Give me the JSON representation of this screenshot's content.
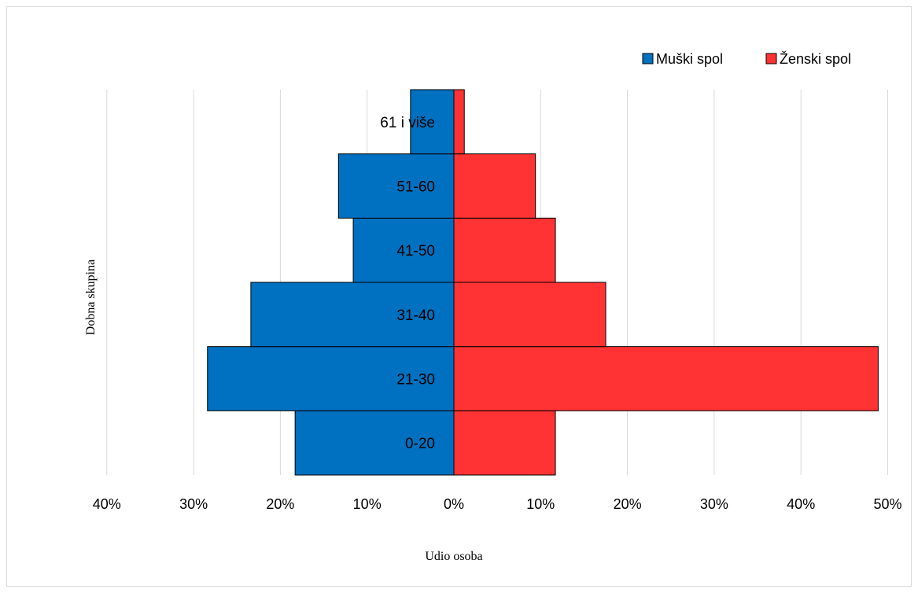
{
  "chart_data": {
    "type": "bar",
    "orientation": "horizontal",
    "layout": "population-pyramid",
    "xlabel": "Udio osoba",
    "ylabel": "Dobna skupina",
    "categories": [
      "0-20",
      "21-30",
      "31-40",
      "41-50",
      "51-60",
      "61 i više"
    ],
    "series": [
      {
        "name": "Muški spol",
        "color": "#0070c0",
        "side": "left",
        "values": [
          18.3,
          28.4,
          23.4,
          11.6,
          13.3,
          5.0
        ]
      },
      {
        "name": "Ženski spol",
        "color": "#ff3333",
        "side": "right",
        "values": [
          11.7,
          48.9,
          17.5,
          11.7,
          9.4,
          1.2
        ]
      }
    ],
    "xlim": [
      -40,
      50
    ],
    "xticks": [
      -40,
      -30,
      -20,
      -10,
      0,
      10,
      20,
      30,
      40,
      50
    ],
    "xtick_labels": [
      "40%",
      "30%",
      "20%",
      "10%",
      "0%",
      "10%",
      "20%",
      "30%",
      "40%",
      "50%"
    ],
    "grid": true,
    "legend_position": "top-right"
  }
}
